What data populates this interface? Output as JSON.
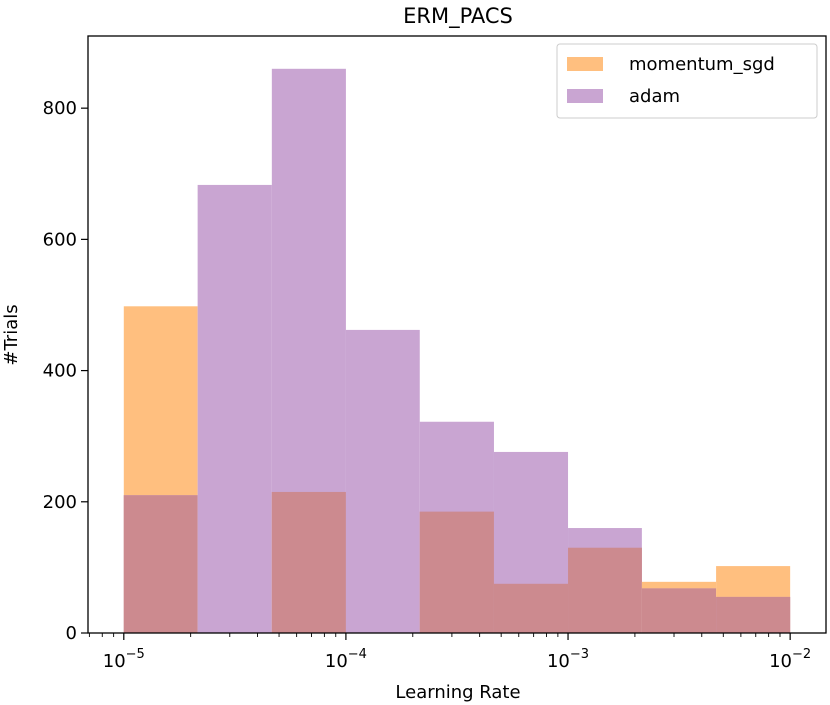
{
  "chart_data": {
    "type": "bar",
    "title": "ERM_PACS",
    "xlabel": "Learning Rate",
    "ylabel": "#Trials",
    "x_scale": "log",
    "xlim": [
      6.9e-06,
      0.0145
    ],
    "ylim": [
      0,
      910
    ],
    "x_ticks": [
      {
        "value": 1e-05,
        "base": "10",
        "exp": "−5"
      },
      {
        "value": 0.0001,
        "base": "10",
        "exp": "−4"
      },
      {
        "value": 0.001,
        "base": "10",
        "exp": "−3"
      },
      {
        "value": 0.01,
        "base": "10",
        "exp": "−2"
      }
    ],
    "y_ticks": [
      "0",
      "200",
      "400",
      "600",
      "800"
    ],
    "bin_edges": [
      1e-05,
      2.15e-05,
      4.64e-05,
      0.0001,
      0.000215,
      0.000464,
      0.001,
      0.00215,
      0.00464,
      0.01
    ],
    "series": [
      {
        "name": "momentum_sgd",
        "color": "#ffbf7f",
        "values": [
          498,
          0,
          215,
          0,
          185,
          75,
          130,
          78,
          102
        ]
      },
      {
        "name": "adam",
        "color": "#c9a5d2",
        "values": [
          210,
          683,
          860,
          462,
          322,
          276,
          160,
          68,
          55
        ]
      }
    ],
    "overlap_color": "#cc8a8f",
    "legend_position": "top-right",
    "grid": false
  }
}
